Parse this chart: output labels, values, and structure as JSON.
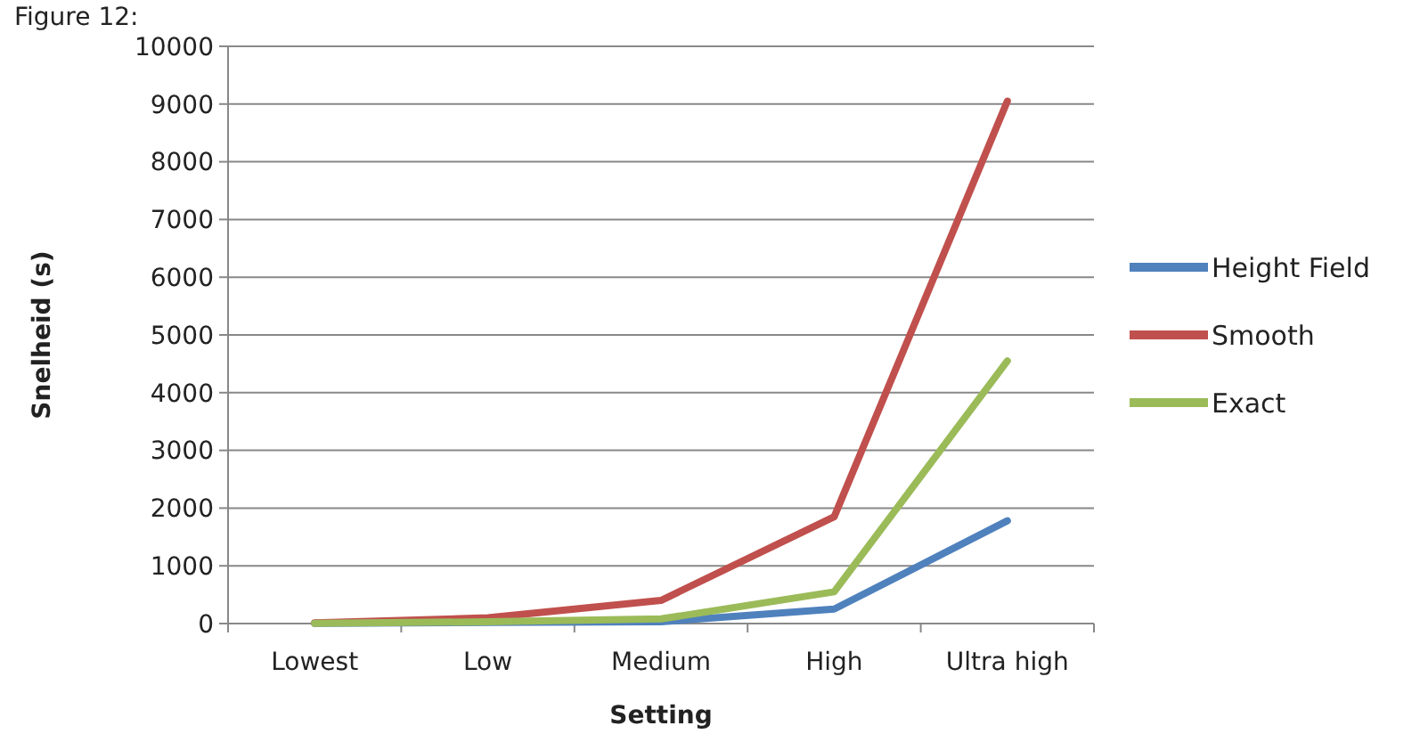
{
  "chart_data": {
    "type": "line",
    "title": "Figure 12:",
    "xlabel": "Setting",
    "ylabel": "Snelheid (s)",
    "categories": [
      "Lowest",
      "Low",
      "Medium",
      "High",
      "Ultra high"
    ],
    "series": [
      {
        "name": "Height Field",
        "color": "#4f81bd",
        "values": [
          5,
          20,
          30,
          250,
          1780
        ]
      },
      {
        "name": "Smooth",
        "color": "#c0504d",
        "values": [
          10,
          100,
          400,
          1850,
          9050
        ]
      },
      {
        "name": "Exact",
        "color": "#9bbb59",
        "values": [
          5,
          30,
          80,
          550,
          4550
        ]
      }
    ],
    "ylim": [
      0,
      10000
    ],
    "yticks": [
      0,
      1000,
      2000,
      3000,
      4000,
      5000,
      6000,
      7000,
      8000,
      9000,
      10000
    ],
    "grid": "y",
    "legend": "right",
    "marker": "none",
    "line_style": "solid"
  }
}
